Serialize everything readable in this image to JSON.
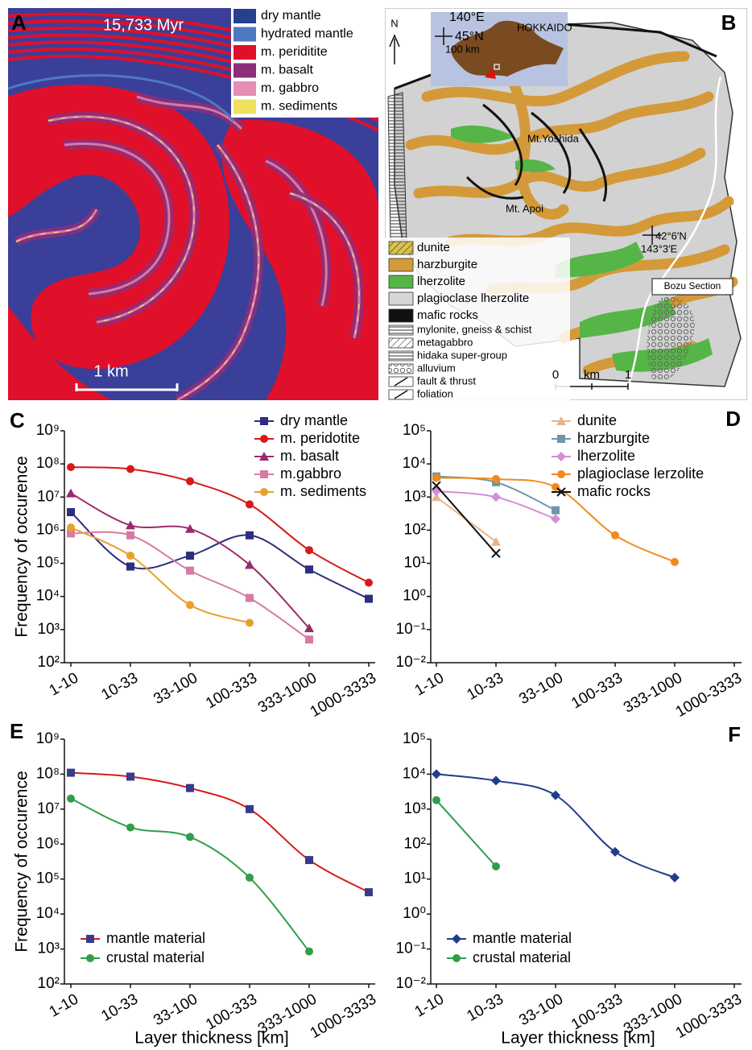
{
  "panel_a": {
    "label": "A",
    "time_label": "15,733 Myr",
    "scale_label": "1 km",
    "legend": [
      {
        "name": "dry mantle",
        "color": "#27408b"
      },
      {
        "name": "hydrated mantle",
        "color": "#4f78c0"
      },
      {
        "name": "m. periditite",
        "color": "#e0102a"
      },
      {
        "name": "m. basalt",
        "color": "#8c2f7a"
      },
      {
        "name": "m. gabbro",
        "color": "#e58fb6"
      },
      {
        "name": "m. sediments",
        "color": "#f0e060"
      }
    ]
  },
  "panel_b": {
    "label": "B",
    "north": "N",
    "inset_lon": "140°E",
    "inset_lat": "45°N",
    "inset_scale": "100 km",
    "island": "HOKKAIDO",
    "peak_1": "Mt.Yoshida",
    "peak_2": "Mt. Apoi",
    "coord_lat": "42°6′N",
    "coord_lon": "143°3′E",
    "section": "Bozu Section",
    "scale_zero": "0",
    "scale_unit": "km",
    "scale_one": "1",
    "legend": [
      {
        "name": "dunite",
        "color": "#d9c24a"
      },
      {
        "name": "harzburgite",
        "color": "#d49a3a"
      },
      {
        "name": "lherzolite",
        "color": "#55b547"
      },
      {
        "name": "plagioclase lherzolite",
        "color": "#d6d6d6"
      },
      {
        "name": "mafic rocks",
        "color": "#111111"
      },
      {
        "name": "mylonite, gneiss & schist"
      },
      {
        "name": "metagabbro"
      },
      {
        "name": "hidaka super-group"
      },
      {
        "name": "alluvium"
      },
      {
        "name": "fault & thrust"
      },
      {
        "name": "foliation"
      }
    ]
  },
  "chart_data": [
    {
      "type": "line",
      "panel": "C",
      "log_scale": true,
      "legend": "upper right",
      "y_label": "Frequency of occurence",
      "categories": [
        "1-10",
        "10-33",
        "33-100",
        "100-333",
        "333-1000",
        "1000-3333"
      ],
      "ylim": [
        100,
        1000000000
      ],
      "yticks": [
        {
          "value": 100,
          "label": "10²"
        },
        {
          "value": 1000,
          "label": "10³"
        },
        {
          "value": 10000,
          "label": "10⁴"
        },
        {
          "value": 100000,
          "label": "10⁵"
        },
        {
          "value": 1000000,
          "label": "10⁶"
        },
        {
          "value": 10000000,
          "label": "10⁷"
        },
        {
          "value": 100000000,
          "label": "10⁸"
        },
        {
          "value": 1000000000,
          "label": "10⁹"
        }
      ],
      "series": [
        {
          "name": "dry mantle",
          "color": "#2e2e80",
          "marker": "square",
          "values": [
            3500000,
            80000,
            170000,
            700000,
            65000,
            8500
          ]
        },
        {
          "name": "m. peridotite",
          "color": "#d7191c",
          "marker": "circle",
          "values": [
            80000000,
            70000000,
            30000000,
            6000000,
            250000,
            26000
          ]
        },
        {
          "name": "m. basalt",
          "color": "#9c2a6b",
          "marker": "triangle",
          "values": [
            13000000,
            1400000,
            1100000,
            90000,
            1100,
            null
          ]
        },
        {
          "name": "m.gabbro",
          "color": "#d87aa3",
          "marker": "square",
          "values": [
            800000,
            700000,
            60000,
            9000,
            500,
            null
          ]
        },
        {
          "name": "m. sediments",
          "color": "#e8a02a",
          "marker": "circle",
          "values": [
            1200000,
            170000,
            5500,
            1600,
            null,
            null
          ]
        }
      ]
    },
    {
      "type": "line",
      "panel": "D",
      "log_scale": true,
      "legend": "upper right",
      "categories": [
        "1-10",
        "10-33",
        "33-100",
        "100-333",
        "333-1000",
        "1000-3333"
      ],
      "ylim": [
        0.01,
        100000
      ],
      "yticks": [
        {
          "value": 0.01,
          "label": "10⁻²"
        },
        {
          "value": 0.1,
          "label": "10⁻¹"
        },
        {
          "value": 1,
          "label": "10⁰"
        },
        {
          "value": 10,
          "label": "10¹"
        },
        {
          "value": 100,
          "label": "10²"
        },
        {
          "value": 1000,
          "label": "10³"
        },
        {
          "value": 10000,
          "label": "10⁴"
        },
        {
          "value": 100000,
          "label": "10⁵"
        }
      ],
      "series": [
        {
          "name": "dunite",
          "color": "#e8b48a",
          "marker": "triangle",
          "values": [
            1000,
            45,
            null,
            null,
            null,
            null
          ]
        },
        {
          "name": "harzburgite",
          "color": "#6f97a8",
          "marker": "square",
          "values": [
            4200,
            2800,
            400,
            null,
            null,
            null
          ]
        },
        {
          "name": "lherzolite",
          "color": "#d58ed3",
          "marker": "diamond",
          "values": [
            1500,
            1000,
            220,
            null,
            null,
            null
          ]
        },
        {
          "name": "plagioclase lerzolite",
          "color": "#f08a1c",
          "marker": "circle",
          "values": [
            3800,
            3500,
            2000,
            70,
            11,
            null
          ]
        },
        {
          "name": "mafic rocks",
          "color": "#111111",
          "marker": "x",
          "values": [
            2200,
            20,
            null,
            null,
            null,
            null
          ]
        }
      ]
    },
    {
      "type": "line",
      "panel": "E",
      "log_scale": true,
      "legend": "lower left",
      "y_label": "Frequency of occurence",
      "x_label": "Layer thickness [km]",
      "categories": [
        "1-10",
        "10-33",
        "33-100",
        "100-333",
        "333-1000",
        "1000-3333"
      ],
      "ylim": [
        100,
        1000000000
      ],
      "yticks": [
        {
          "value": 100,
          "label": "10²"
        },
        {
          "value": 1000,
          "label": "10³"
        },
        {
          "value": 10000,
          "label": "10⁴"
        },
        {
          "value": 100000,
          "label": "10⁵"
        },
        {
          "value": 1000000,
          "label": "10⁶"
        },
        {
          "value": 10000000,
          "label": "10⁷"
        },
        {
          "value": 100000000,
          "label": "10⁸"
        },
        {
          "value": 1000000000,
          "label": "10⁹"
        }
      ],
      "series": [
        {
          "name": "mantle material",
          "color": "#d7191c",
          "marker_color": "#3a3a8c",
          "marker": "square",
          "values": [
            110000000,
            85000000,
            40000000,
            10000000,
            350000,
            42000
          ]
        },
        {
          "name": "crustal material",
          "color": "#2e9e4a",
          "marker": "circle",
          "values": [
            20000000,
            3000000,
            1600000,
            110000,
            850,
            null
          ]
        }
      ]
    },
    {
      "type": "line",
      "panel": "F",
      "log_scale": true,
      "legend": "lower left",
      "x_label": "Layer thickness [km]",
      "categories": [
        "1-10",
        "10-33",
        "33-100",
        "100-333",
        "333-1000",
        "1000-3333"
      ],
      "ylim": [
        0.01,
        100000
      ],
      "yticks": [
        {
          "value": 0.01,
          "label": "10⁻²"
        },
        {
          "value": 0.1,
          "label": "10⁻¹"
        },
        {
          "value": 1,
          "label": "10⁰"
        },
        {
          "value": 10,
          "label": "10¹"
        },
        {
          "value": 100,
          "label": "10²"
        },
        {
          "value": 1000,
          "label": "10³"
        },
        {
          "value": 10000,
          "label": "10⁴"
        },
        {
          "value": 100000,
          "label": "10⁵"
        }
      ],
      "series": [
        {
          "name": "mantle material",
          "color": "#1f3d8c",
          "marker": "diamond",
          "values": [
            10000,
            6500,
            2500,
            60,
            11,
            null
          ]
        },
        {
          "name": "crustal material",
          "color": "#2e9e4a",
          "marker": "circle",
          "values": [
            1800,
            23,
            null,
            null,
            null,
            null
          ]
        }
      ]
    }
  ]
}
